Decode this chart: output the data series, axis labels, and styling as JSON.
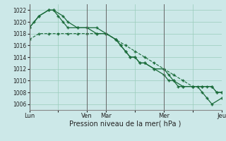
{
  "background_color": "#cce8e8",
  "plot_bg_color": "#cce8e8",
  "grid_color": "#99ccbb",
  "line_color": "#1a6b3a",
  "ylim": [
    1005,
    1023
  ],
  "ytick_vals": [
    1006,
    1008,
    1010,
    1012,
    1014,
    1016,
    1018,
    1020,
    1022
  ],
  "xlabel": "Pression niveau de la mer( hPa )",
  "xtick_labels": [
    "Lun",
    "",
    "Ven",
    "Mar",
    "",
    "Mer",
    "",
    "Jeu"
  ],
  "xtick_pos": [
    0,
    3,
    6,
    8,
    11,
    14,
    17,
    20
  ],
  "vline_pos": [
    0,
    6,
    8,
    14,
    20
  ],
  "series1_x": [
    0,
    1,
    2,
    2.5,
    3.5,
    4,
    5,
    6,
    7,
    8,
    9,
    9.5,
    10,
    10.5,
    11,
    11.5,
    12,
    13,
    14,
    14.5,
    15,
    16,
    17,
    18,
    19,
    19.5,
    20
  ],
  "series1_y": [
    1019,
    1021,
    1022,
    1022,
    1021,
    1020,
    1019,
    1019,
    1019,
    1018,
    1017,
    1016,
    1015,
    1014,
    1014,
    1013,
    1013,
    1012,
    1012,
    1011,
    1010,
    1009,
    1009,
    1009,
    1009,
    1008,
    1008
  ],
  "series2_x": [
    0,
    0.5,
    1,
    2,
    2.5,
    3,
    3.5,
    4,
    5,
    6,
    7,
    8,
    9,
    9.5,
    10,
    10.5,
    11,
    11.5,
    12,
    13,
    14,
    14.5,
    15,
    15.5,
    16,
    17,
    17.5,
    18,
    18.5,
    19,
    20
  ],
  "series2_y": [
    1019,
    1020,
    1021,
    1022,
    1022,
    1021,
    1020,
    1019,
    1019,
    1019,
    1018,
    1018,
    1017,
    1016,
    1015,
    1014,
    1014,
    1013,
    1013,
    1012,
    1011,
    1010,
    1010,
    1009,
    1009,
    1009,
    1009,
    1008,
    1007,
    1006,
    1007
  ],
  "series3_x": [
    0,
    1,
    2,
    3,
    4,
    5,
    6,
    7,
    8,
    9,
    10,
    11,
    12,
    13,
    14,
    15,
    16,
    17,
    18,
    18.5,
    19,
    19.5,
    20
  ],
  "series3_y": [
    1017,
    1018,
    1018,
    1018,
    1018,
    1018,
    1018,
    1018,
    1018,
    1017,
    1016,
    1015,
    1014,
    1013,
    1012,
    1011,
    1010,
    1009,
    1009,
    1009,
    1009,
    1008,
    1008
  ]
}
